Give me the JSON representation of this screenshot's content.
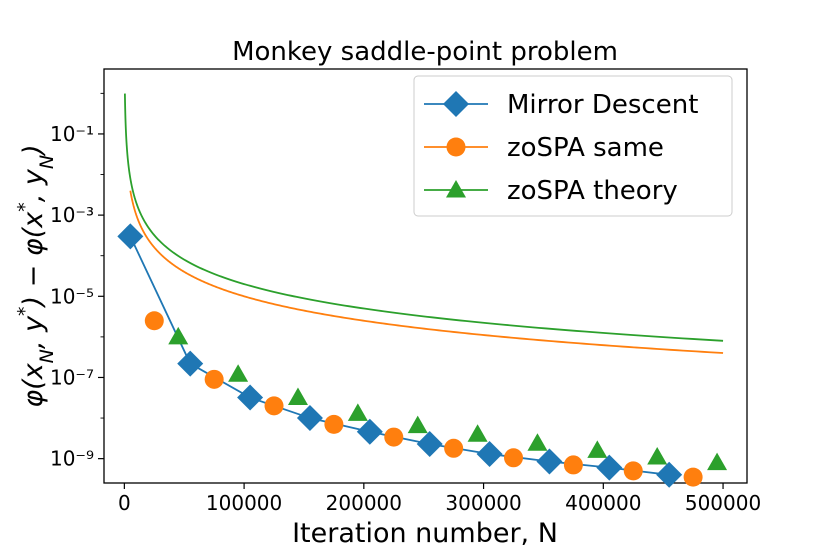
{
  "chart_data": {
    "type": "line",
    "title": "Monkey saddle-point problem",
    "xlabel": "Iteration number, N",
    "ylabel": "φ(x_N, y*) − φ(x*, y_N)",
    "yscale": "log",
    "xlim": [
      -17000,
      520000
    ],
    "ylog_range": [
      -9.6,
      0.6
    ],
    "xticks": [
      0,
      100000,
      200000,
      300000,
      400000,
      500000
    ],
    "xtick_labels": [
      "0",
      "100000",
      "200000",
      "300000",
      "400000",
      "500000"
    ],
    "yticks_exp": [
      -1,
      -3,
      -5,
      -7,
      -9
    ],
    "ytick_labels": [
      "10⁻¹",
      "10⁻³",
      "10⁻⁵",
      "10⁻⁷",
      "10⁻⁹"
    ],
    "legend_position": "top-right",
    "series": [
      {
        "name": "Mirror Descent",
        "color": "#1f77b4",
        "marker": "diamond",
        "x": [
          5000,
          55000,
          105000,
          155000,
          205000,
          255000,
          305000,
          355000,
          405000,
          455000
        ],
        "y": [
          0.0003,
          2.2e-07,
          3.2e-08,
          1e-08,
          4.6e-09,
          2.3e-09,
          1.3e-09,
          8.5e-10,
          6e-10,
          4e-10
        ]
      },
      {
        "name": "zoSPA same",
        "color": "#ff7f0e",
        "marker": "circle",
        "line": {
          "type": "power",
          "A": 100000.0,
          "p": 2,
          "x_start": 5000,
          "x_end": 500000
        },
        "x": [
          25000,
          75000,
          125000,
          175000,
          225000,
          275000,
          325000,
          375000,
          425000,
          475000
        ],
        "y": [
          2.5e-06,
          9e-08,
          2e-08,
          7e-09,
          3.4e-09,
          1.8e-09,
          1.05e-09,
          7e-10,
          5e-10,
          3.5e-10
        ]
      },
      {
        "name": "zoSPA theory",
        "color": "#2ca02c",
        "marker": "triangle",
        "line": {
          "type": "power",
          "A": 200000.0,
          "p": 2,
          "x_start": 450,
          "x_end": 500000
        },
        "x": [
          45000,
          95000,
          145000,
          195000,
          245000,
          295000,
          345000,
          395000,
          445000,
          495000
        ],
        "y": [
          1e-06,
          1.2e-07,
          3.2e-08,
          1.3e-08,
          6.5e-09,
          4e-09,
          2.4e-09,
          1.6e-09,
          1.1e-09,
          8e-10
        ]
      }
    ]
  }
}
